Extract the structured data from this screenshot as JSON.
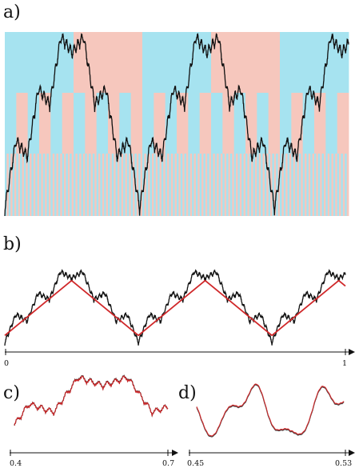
{
  "panels": {
    "a": {
      "label": "a)"
    },
    "b": {
      "label": "b)",
      "axis_min": "0",
      "axis_max": "1"
    },
    "c": {
      "label": "c)",
      "axis_min": "0.4",
      "axis_max": "0.7"
    },
    "d": {
      "label": "d)",
      "axis_min": "0.45",
      "axis_max": "0.53"
    }
  },
  "colors": {
    "cyan": "#a6e3f0",
    "salmon": "#f6c7bd",
    "curve": "#111111",
    "trend": "#d0282a",
    "axis": "#111111"
  }
}
